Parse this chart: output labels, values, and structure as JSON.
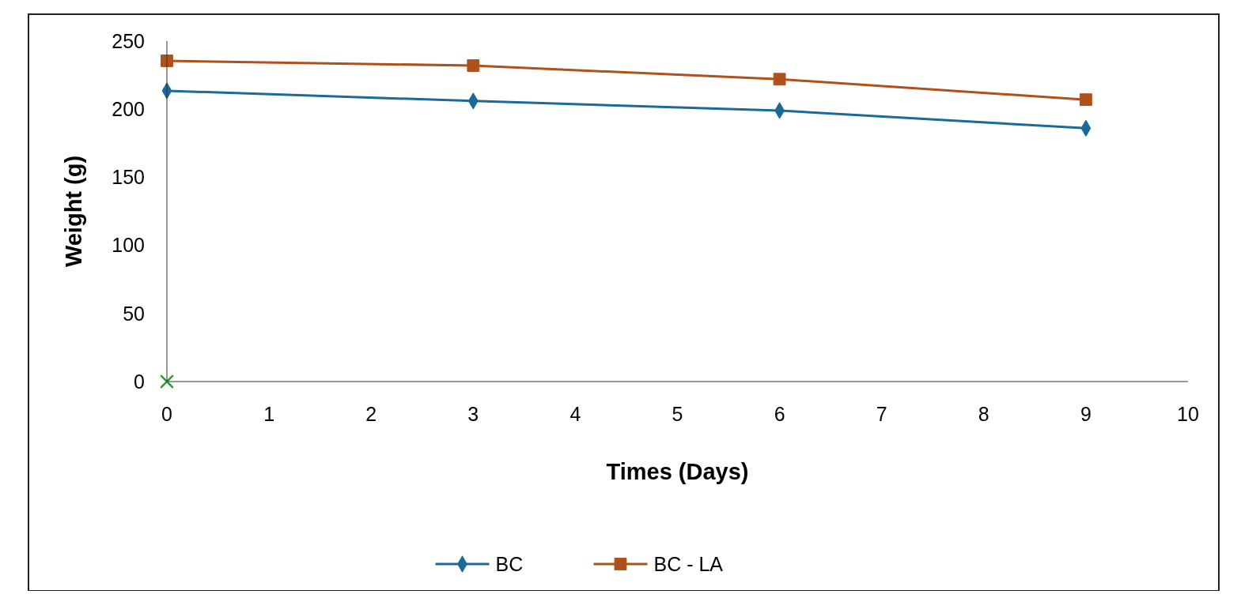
{
  "chart_data": {
    "type": "line",
    "xlabel": "Times (Days)",
    "ylabel": "Weight (g)",
    "xlim": [
      0,
      10
    ],
    "xticks": [
      0,
      1,
      2,
      3,
      4,
      5,
      6,
      7,
      8,
      9,
      10
    ],
    "ylim": [
      0,
      250
    ],
    "yticks": [
      0,
      50,
      100,
      150,
      200,
      250
    ],
    "grid": false,
    "legend": "bottom",
    "line_style": "solid",
    "series": [
      {
        "name": "BC",
        "color": "#1b6a98",
        "marker": "diamond",
        "x": [
          0,
          3,
          6,
          9
        ],
        "values": [
          213.5,
          206,
          199,
          186
        ]
      },
      {
        "name": "BC - LA",
        "color": "#b0501a",
        "marker": "square",
        "x": [
          0,
          3,
          6,
          9
        ],
        "values": [
          235.5,
          232,
          222,
          207
        ]
      },
      {
        "type": "scatter",
        "color": "#2e9a2e",
        "marker": "cross",
        "x": [
          0
        ],
        "values": [
          0
        ]
      }
    ]
  }
}
